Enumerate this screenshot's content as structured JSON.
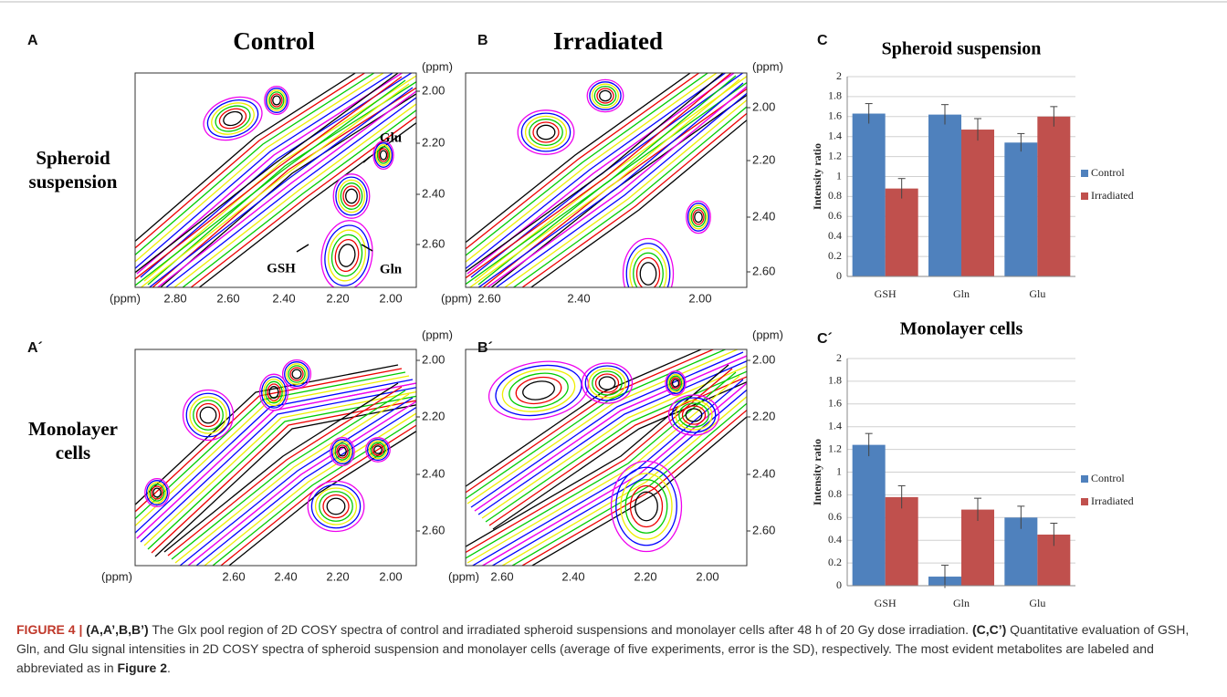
{
  "panels": [
    {
      "letter": "A",
      "title": "Control",
      "row_label": "Spheroid suspension",
      "x_ticks": [
        "(ppm)",
        "2.80",
        "2.60",
        "2.40",
        "2.20",
        "2.00"
      ],
      "y_ticks": [
        "(ppm)",
        "2.00",
        "2.20",
        "2.40",
        "2.60"
      ],
      "annotations": [
        "Glu",
        "Gln",
        "GSH"
      ]
    },
    {
      "letter": "B",
      "title": "Irradiated",
      "x_ticks": [
        "(ppm)",
        "2.60",
        "2.40",
        "2.00"
      ],
      "y_ticks": [
        "(ppm)",
        "2.00",
        "2.20",
        "2.40",
        "2.60"
      ]
    },
    {
      "letter": "A´",
      "row_label": "Monolayer cells",
      "x_ticks": [
        "(ppm)",
        "2.60",
        "2.40",
        "2.20",
        "2.00"
      ],
      "y_ticks": [
        "(ppm)",
        "2.00",
        "2.20",
        "2.40",
        "2.60"
      ]
    },
    {
      "letter": "B´",
      "x_ticks": [
        "(ppm)",
        "2.60",
        "2.40",
        "2.20",
        "2.00"
      ],
      "y_ticks": [
        "(ppm)",
        "2.00",
        "2.20",
        "2.40",
        "2.60"
      ]
    }
  ],
  "chart_data": [
    {
      "type": "bar",
      "letter": "C",
      "title": "Spheroid suspension",
      "y_label": "Intensity ratio",
      "categories": [
        "GSH",
        "Gln",
        "Glu"
      ],
      "series": [
        {
          "name": "Control",
          "color": "#4f81bd",
          "values": [
            1.63,
            1.62,
            1.34
          ],
          "errors": [
            0.1,
            0.1,
            0.09
          ]
        },
        {
          "name": "Irradiated",
          "color": "#c0504d",
          "values": [
            0.88,
            1.47,
            1.6
          ],
          "errors": [
            0.1,
            0.11,
            0.1
          ]
        }
      ],
      "ylim": [
        0,
        2
      ],
      "yticks": [
        0,
        0.2,
        0.4,
        0.6,
        0.8,
        1,
        1.2,
        1.4,
        1.6,
        1.8,
        2
      ],
      "grid": true,
      "legend": "right"
    },
    {
      "type": "bar",
      "letter": "C´",
      "title": "Monolayer cells",
      "y_label": "Intensity ratio",
      "categories": [
        "GSH",
        "Gln",
        "Glu"
      ],
      "series": [
        {
          "name": "Control",
          "color": "#4f81bd",
          "values": [
            1.24,
            0.08,
            0.6
          ],
          "errors": [
            0.1,
            0.1,
            0.1
          ]
        },
        {
          "name": "Irradiated",
          "color": "#c0504d",
          "values": [
            0.78,
            0.67,
            0.45
          ],
          "errors": [
            0.1,
            0.1,
            0.1
          ]
        }
      ],
      "ylim": [
        0,
        2
      ],
      "yticks": [
        0,
        0.2,
        0.4,
        0.6,
        0.8,
        1,
        1.2,
        1.4,
        1.6,
        1.8,
        2
      ],
      "grid": true,
      "legend": "right"
    }
  ],
  "caption": [
    "FIGURE 4 | ",
    "(A,A’,B,B’)",
    " The Glx pool region of 2D COSY spectra of control and irradiated spheroid suspensions and monolayer cells after 48 h of 20 Gy dose irradiation. ",
    "(C,C’)",
    " Quantitative evaluation of GSH, Gln, and Glu signal intensities in 2D COSY spectra of spheroid suspension and monolayer cells (average of five experiments, error is the SD), respectively. The most evident metabolites are labeled and abbreviated as in ",
    "Figure 2",
    "."
  ]
}
